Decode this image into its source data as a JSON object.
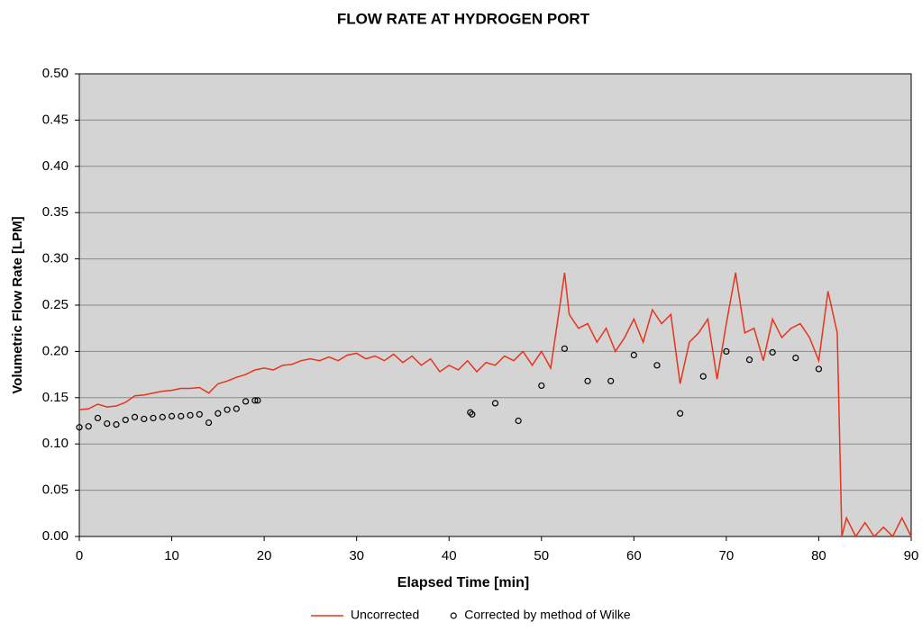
{
  "chart_data": {
    "type": "line",
    "title": "FLOW RATE AT HYDROGEN PORT",
    "xlabel": "Elapsed Time [min]",
    "ylabel": "Volumetric Flow Rate [LPM]",
    "xlim": [
      0,
      90
    ],
    "xticks": [
      0,
      10,
      20,
      30,
      40,
      50,
      60,
      70,
      80,
      90
    ],
    "ylim": [
      0,
      0.5
    ],
    "yticks": [
      {
        "value": 0,
        "label": "0.00"
      },
      0.05,
      {
        "value": 0.1,
        "label": "0.10"
      },
      0.15,
      {
        "value": 0.2,
        "label": "0.20"
      },
      0.25,
      {
        "value": 0.3,
        "label": "0.30"
      },
      0.35,
      {
        "value": 0.4,
        "label": "0.40"
      },
      0.45,
      {
        "value": 0.5,
        "label": "0.50"
      }
    ],
    "grid": true,
    "legend": "bottom",
    "series": [
      {
        "name": "Uncorrected",
        "color": "#e8341c",
        "type": "line",
        "x": [
          0,
          1,
          2,
          3,
          4,
          5,
          6,
          7,
          8,
          9,
          10,
          11,
          12,
          13,
          14,
          15,
          16,
          17,
          18,
          19,
          20,
          21,
          22,
          23,
          24,
          25,
          26,
          27,
          28,
          29,
          30,
          31,
          32,
          33,
          34,
          35,
          36,
          37,
          38,
          39,
          40,
          41,
          42,
          43,
          44,
          45,
          46,
          47,
          48,
          49,
          50,
          51,
          52,
          52.5,
          53,
          54,
          55,
          56,
          57,
          58,
          59,
          60,
          61,
          62,
          63,
          64,
          65,
          66,
          67,
          68,
          69,
          70,
          71,
          72,
          73,
          74,
          75,
          76,
          77,
          78,
          79,
          80,
          81,
          82,
          82.5,
          83,
          84,
          85,
          86,
          87,
          88,
          89,
          90
        ],
        "values": [
          0.137,
          0.138,
          0.143,
          0.14,
          0.141,
          0.145,
          0.152,
          0.153,
          0.155,
          0.157,
          0.158,
          0.16,
          0.16,
          0.161,
          0.155,
          0.165,
          0.168,
          0.172,
          0.175,
          0.18,
          0.182,
          0.18,
          0.185,
          0.186,
          0.19,
          0.192,
          0.19,
          0.194,
          0.19,
          0.196,
          0.198,
          0.192,
          0.195,
          0.19,
          0.197,
          0.188,
          0.195,
          0.185,
          0.192,
          0.178,
          0.185,
          0.18,
          0.19,
          0.178,
          0.188,
          0.185,
          0.195,
          0.19,
          0.2,
          0.185,
          0.2,
          0.182,
          0.25,
          0.285,
          0.24,
          0.225,
          0.23,
          0.21,
          0.225,
          0.2,
          0.215,
          0.235,
          0.21,
          0.245,
          0.23,
          0.24,
          0.165,
          0.21,
          0.22,
          0.235,
          0.17,
          0.23,
          0.285,
          0.22,
          0.225,
          0.19,
          0.235,
          0.215,
          0.225,
          0.23,
          0.215,
          0.19,
          0.265,
          0.22,
          0,
          0.02,
          0,
          0.015,
          0,
          0.01,
          0,
          0.02,
          0
        ]
      },
      {
        "name": "Corrected by method of Wilke",
        "color": "#000000",
        "type": "scatter",
        "x": [
          0,
          1,
          2,
          3,
          4,
          5,
          6,
          7,
          8,
          9,
          10,
          11,
          12,
          13,
          14,
          15,
          16,
          17,
          18,
          19,
          19.3,
          42.3,
          42.5,
          45,
          47.5,
          50,
          52.5,
          55,
          57.5,
          60,
          62.5,
          65,
          67.5,
          70,
          72.5,
          75,
          77.5,
          80
        ],
        "values": [
          0.118,
          0.119,
          0.128,
          0.122,
          0.121,
          0.126,
          0.129,
          0.127,
          0.128,
          0.129,
          0.13,
          0.13,
          0.131,
          0.132,
          0.123,
          0.133,
          0.137,
          0.138,
          0.146,
          0.147,
          0.147,
          0.134,
          0.132,
          0.144,
          0.125,
          0.163,
          0.203,
          0.168,
          0.168,
          0.196,
          0.185,
          0.133,
          0.173,
          0.2,
          0.191,
          0.199,
          0.193,
          0.181
        ]
      }
    ]
  }
}
